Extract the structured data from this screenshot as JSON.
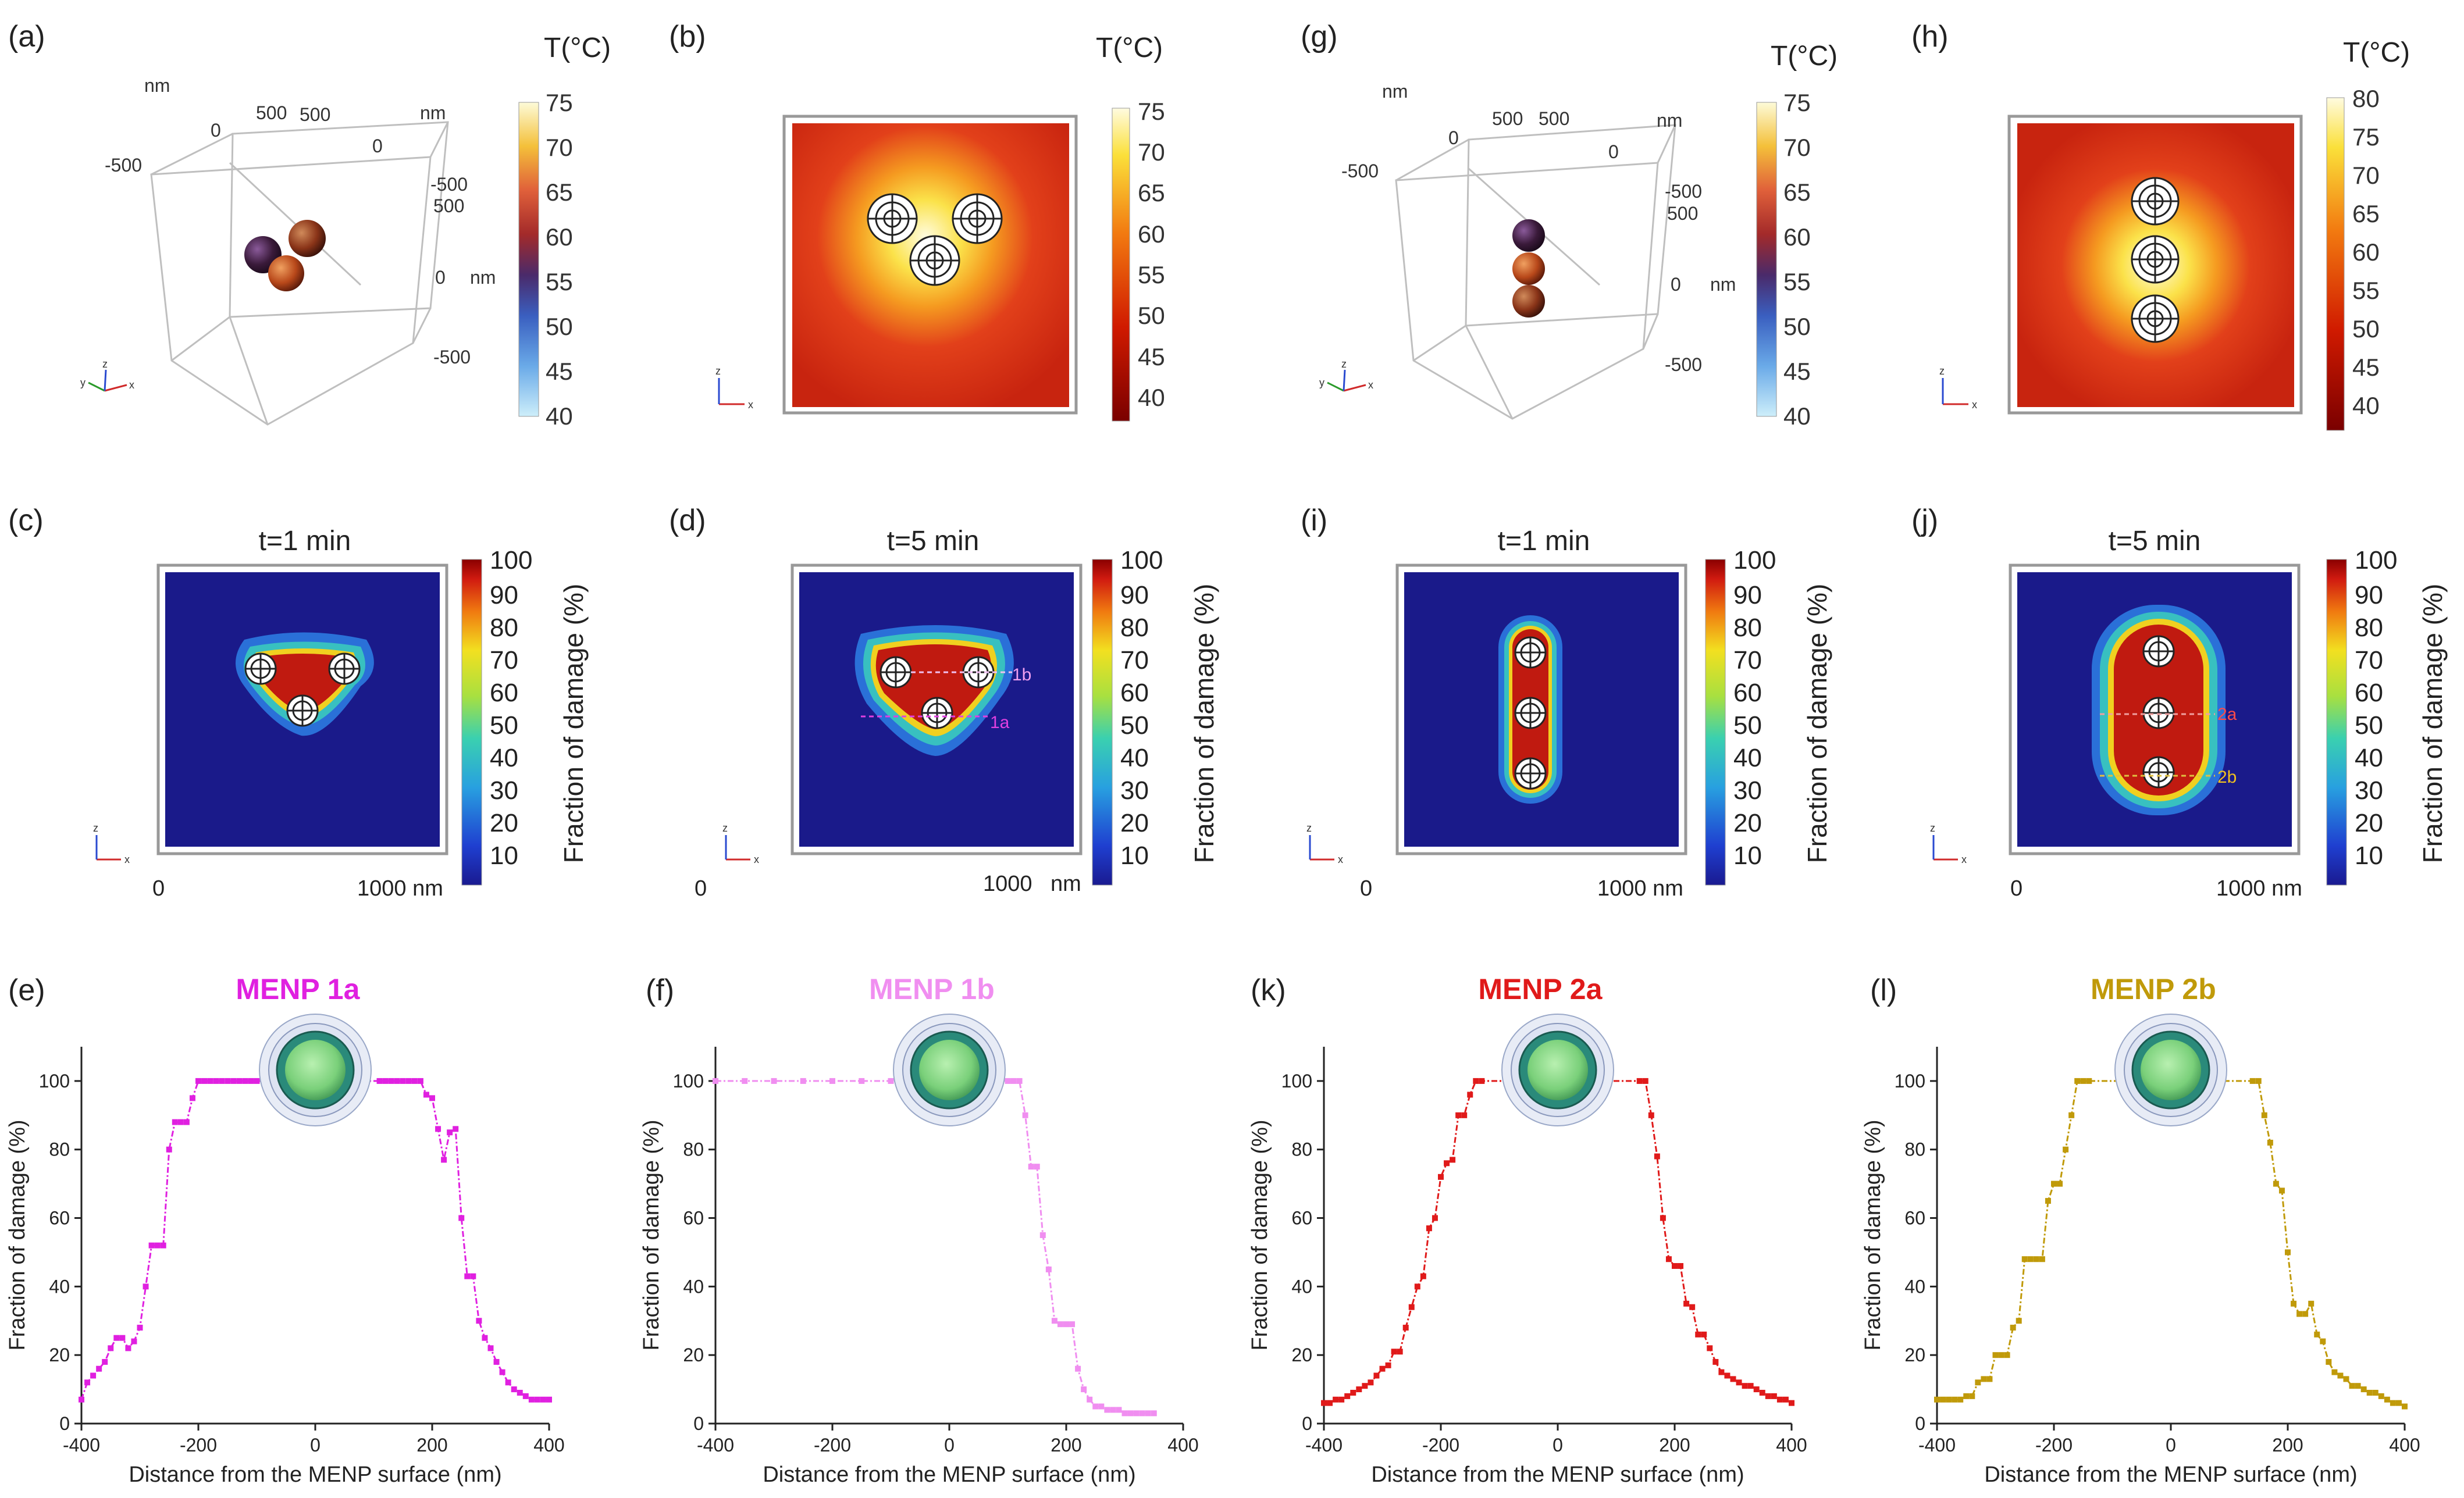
{
  "figure": {
    "panel_letters": {
      "a": "(a)",
      "b": "(b)",
      "c": "(c)",
      "d": "(d)",
      "e": "(e)",
      "f": "(f)",
      "g": "(g)",
      "h": "(h)",
      "i": "(i)",
      "j": "(j)",
      "k": "(k)",
      "l": "(l)"
    },
    "temp_colorbar": {
      "label": "T(°C)",
      "ticks_a": [
        "40",
        "45",
        "50",
        "55",
        "60",
        "65",
        "70",
        "75"
      ],
      "ticks_b": [
        "40",
        "45",
        "50",
        "55",
        "60",
        "65",
        "70",
        "75"
      ],
      "ticks_g": [
        "40",
        "45",
        "50",
        "55",
        "60",
        "65",
        "70",
        "75"
      ],
      "ticks_h": [
        "40",
        "45",
        "50",
        "55",
        "60",
        "65",
        "70",
        "75",
        "80"
      ]
    },
    "damage_colorbar": {
      "label": "Fraction of damage (%)",
      "ticks": [
        "10",
        "20",
        "30",
        "40",
        "50",
        "60",
        "70",
        "80",
        "90",
        "100"
      ]
    },
    "axes3d_a": {
      "top_unit_left": "nm",
      "top_unit_right": "nm",
      "side_unit": "nm",
      "t_m500_left": "-500",
      "t_0_left": "0",
      "t_500_left": "500",
      "t_500_right": "500",
      "t_0_right": "0",
      "t_m500_right": "-500",
      "t_500_side": "500",
      "t_0_side": "0",
      "t_m500_side": "-500"
    },
    "axes3d_g": {
      "top_unit_left": "nm",
      "top_unit_right": "nm",
      "side_unit": "nm",
      "t_m500_left": "-500",
      "t_0_left": "0",
      "t_500_left": "500",
      "t_500_right": "500",
      "t_0_right": "0",
      "t_m500_right": "-500",
      "t_500_side": "500",
      "t_0_side": "0",
      "t_m500_side": "-500"
    },
    "triad": {
      "x": "x",
      "y": "y",
      "z": "z"
    },
    "damage_maps": {
      "c": {
        "title": "t=1 min",
        "x_start": "0",
        "x_end": "1000 nm"
      },
      "d": {
        "title": "t=5 min",
        "x_start": "0",
        "x_end": "1000",
        "x_unit": "nm",
        "line1": "1a",
        "line2": "1b"
      },
      "i": {
        "title": "t=1 min",
        "x_start": "0",
        "x_end": "1000 nm"
      },
      "j": {
        "title": "t=5 min",
        "x_start": "0",
        "x_end": "1000 nm",
        "line1": "2a",
        "line2": "2b"
      }
    },
    "colors": {
      "menp1a": "#e020e0",
      "menp1b": "#f08ef0",
      "menp2a": "#e01a1a",
      "menp2b": "#c09a0a"
    }
  },
  "chart_data": [
    {
      "type": "line",
      "panel": "e",
      "title": "MENP 1a",
      "color": "#e020e0",
      "xlabel": "Distance from the MENP surface (nm)",
      "ylabel": "Fraction of damage (%)",
      "xlim": [
        -400,
        400
      ],
      "ylim": [
        0,
        110
      ],
      "xticks": [
        "-400",
        "-200",
        "0",
        "200",
        "400"
      ],
      "yticks": [
        "0",
        "20",
        "40",
        "60",
        "80",
        "100"
      ],
      "x": [
        -400,
        -390,
        -380,
        -370,
        -360,
        -350,
        -340,
        -330,
        -320,
        -310,
        -300,
        -290,
        -280,
        -270,
        -260,
        -250,
        -240,
        -230,
        -220,
        -210,
        -200,
        -190,
        -180,
        -170,
        -160,
        -150,
        -140,
        -130,
        -120,
        -110,
        -100,
        110,
        120,
        130,
        140,
        150,
        160,
        170,
        180,
        190,
        200,
        210,
        220,
        230,
        240,
        250,
        260,
        270,
        280,
        290,
        300,
        310,
        320,
        330,
        340,
        350,
        360,
        370,
        380,
        390,
        400
      ],
      "y": [
        7,
        12,
        14,
        16,
        18,
        22,
        25,
        25,
        22,
        24,
        28,
        40,
        52,
        52,
        52,
        80,
        88,
        88,
        88,
        95,
        100,
        100,
        100,
        100,
        100,
        100,
        100,
        100,
        100,
        100,
        100,
        100,
        100,
        100,
        100,
        100,
        100,
        100,
        100,
        96,
        95,
        86,
        77,
        85,
        86,
        60,
        43,
        43,
        30,
        25,
        22,
        18,
        15,
        12,
        10,
        9,
        8,
        7,
        7,
        7,
        7
      ]
    },
    {
      "type": "line",
      "panel": "f",
      "title": "MENP 1b",
      "color": "#f08ef0",
      "xlabel": "Distance from the MENP surface (nm)",
      "ylabel": "Fraction of damage (%)",
      "xlim": [
        -400,
        400
      ],
      "ylim": [
        0,
        110
      ],
      "xticks": [
        "-400",
        "-200",
        "0",
        "200",
        "400"
      ],
      "yticks": [
        "0",
        "20",
        "40",
        "60",
        "80",
        "100"
      ],
      "x": [
        -400,
        -350,
        -300,
        -250,
        -200,
        -150,
        -100,
        -50,
        0,
        50,
        100,
        110,
        120,
        130,
        140,
        150,
        160,
        170,
        180,
        190,
        200,
        210,
        220,
        230,
        240,
        250,
        260,
        270,
        280,
        290,
        300,
        310,
        320,
        330,
        340,
        350
      ],
      "y": [
        100,
        100,
        100,
        100,
        100,
        100,
        100,
        100,
        100,
        100,
        100,
        100,
        100,
        90,
        75,
        75,
        55,
        45,
        30,
        29,
        29,
        29,
        16,
        10,
        7,
        5,
        5,
        4,
        4,
        4,
        3,
        3,
        3,
        3,
        3,
        3
      ]
    },
    {
      "type": "line",
      "panel": "k",
      "title": "MENP 2a",
      "color": "#e01a1a",
      "xlabel": "Distance from the MENP surface (nm)",
      "ylabel": "Fraction of damage (%)",
      "xlim": [
        -400,
        400
      ],
      "ylim": [
        0,
        110
      ],
      "xticks": [
        "-400",
        "-200",
        "0",
        "200",
        "400"
      ],
      "yticks": [
        "0",
        "20",
        "40",
        "60",
        "80",
        "100"
      ],
      "x": [
        -400,
        -390,
        -380,
        -370,
        -360,
        -350,
        -340,
        -330,
        -320,
        -310,
        -300,
        -290,
        -280,
        -270,
        -260,
        -250,
        -240,
        -230,
        -220,
        -210,
        -200,
        -190,
        -180,
        -170,
        -160,
        -150,
        -140,
        -130,
        140,
        150,
        160,
        170,
        180,
        190,
        200,
        210,
        220,
        230,
        240,
        250,
        260,
        270,
        280,
        290,
        300,
        310,
        320,
        330,
        340,
        350,
        360,
        370,
        380,
        390,
        400
      ],
      "y": [
        6,
        6,
        7,
        7,
        8,
        9,
        10,
        11,
        12,
        14,
        16,
        17,
        21,
        21,
        28,
        34,
        40,
        43,
        57,
        60,
        72,
        76,
        77,
        90,
        90,
        96,
        100,
        100,
        100,
        100,
        90,
        78,
        60,
        48,
        46,
        46,
        35,
        34,
        26,
        26,
        22,
        18,
        15,
        14,
        13,
        12,
        11,
        11,
        10,
        9,
        8,
        8,
        7,
        7,
        6
      ]
    },
    {
      "type": "line",
      "panel": "l",
      "title": "MENP 2b",
      "color": "#c09a0a",
      "xlabel": "Distance from the MENP surface (nm)",
      "ylabel": "Fraction of damage (%)",
      "xlim": [
        -400,
        400
      ],
      "ylim": [
        0,
        110
      ],
      "xticks": [
        "-400",
        "-200",
        "0",
        "200",
        "400"
      ],
      "yticks": [
        "0",
        "20",
        "40",
        "60",
        "80",
        "100"
      ],
      "x": [
        -400,
        -390,
        -380,
        -370,
        -360,
        -350,
        -340,
        -330,
        -320,
        -310,
        -300,
        -290,
        -280,
        -270,
        -260,
        -250,
        -240,
        -230,
        -220,
        -210,
        -200,
        -190,
        -180,
        -170,
        -160,
        -150,
        -140,
        140,
        150,
        160,
        170,
        180,
        190,
        200,
        210,
        220,
        230,
        240,
        250,
        260,
        270,
        280,
        290,
        300,
        310,
        320,
        330,
        340,
        350,
        360,
        370,
        380,
        390,
        400
      ],
      "y": [
        7,
        7,
        7,
        7,
        7,
        8,
        8,
        12,
        13,
        13,
        20,
        20,
        20,
        28,
        30,
        48,
        48,
        48,
        48,
        65,
        70,
        70,
        80,
        90,
        100,
        100,
        100,
        100,
        100,
        90,
        82,
        70,
        68,
        50,
        35,
        32,
        32,
        35,
        26,
        24,
        18,
        15,
        14,
        13,
        11,
        11,
        10,
        9,
        9,
        8,
        7,
        6,
        6,
        5
      ]
    }
  ]
}
